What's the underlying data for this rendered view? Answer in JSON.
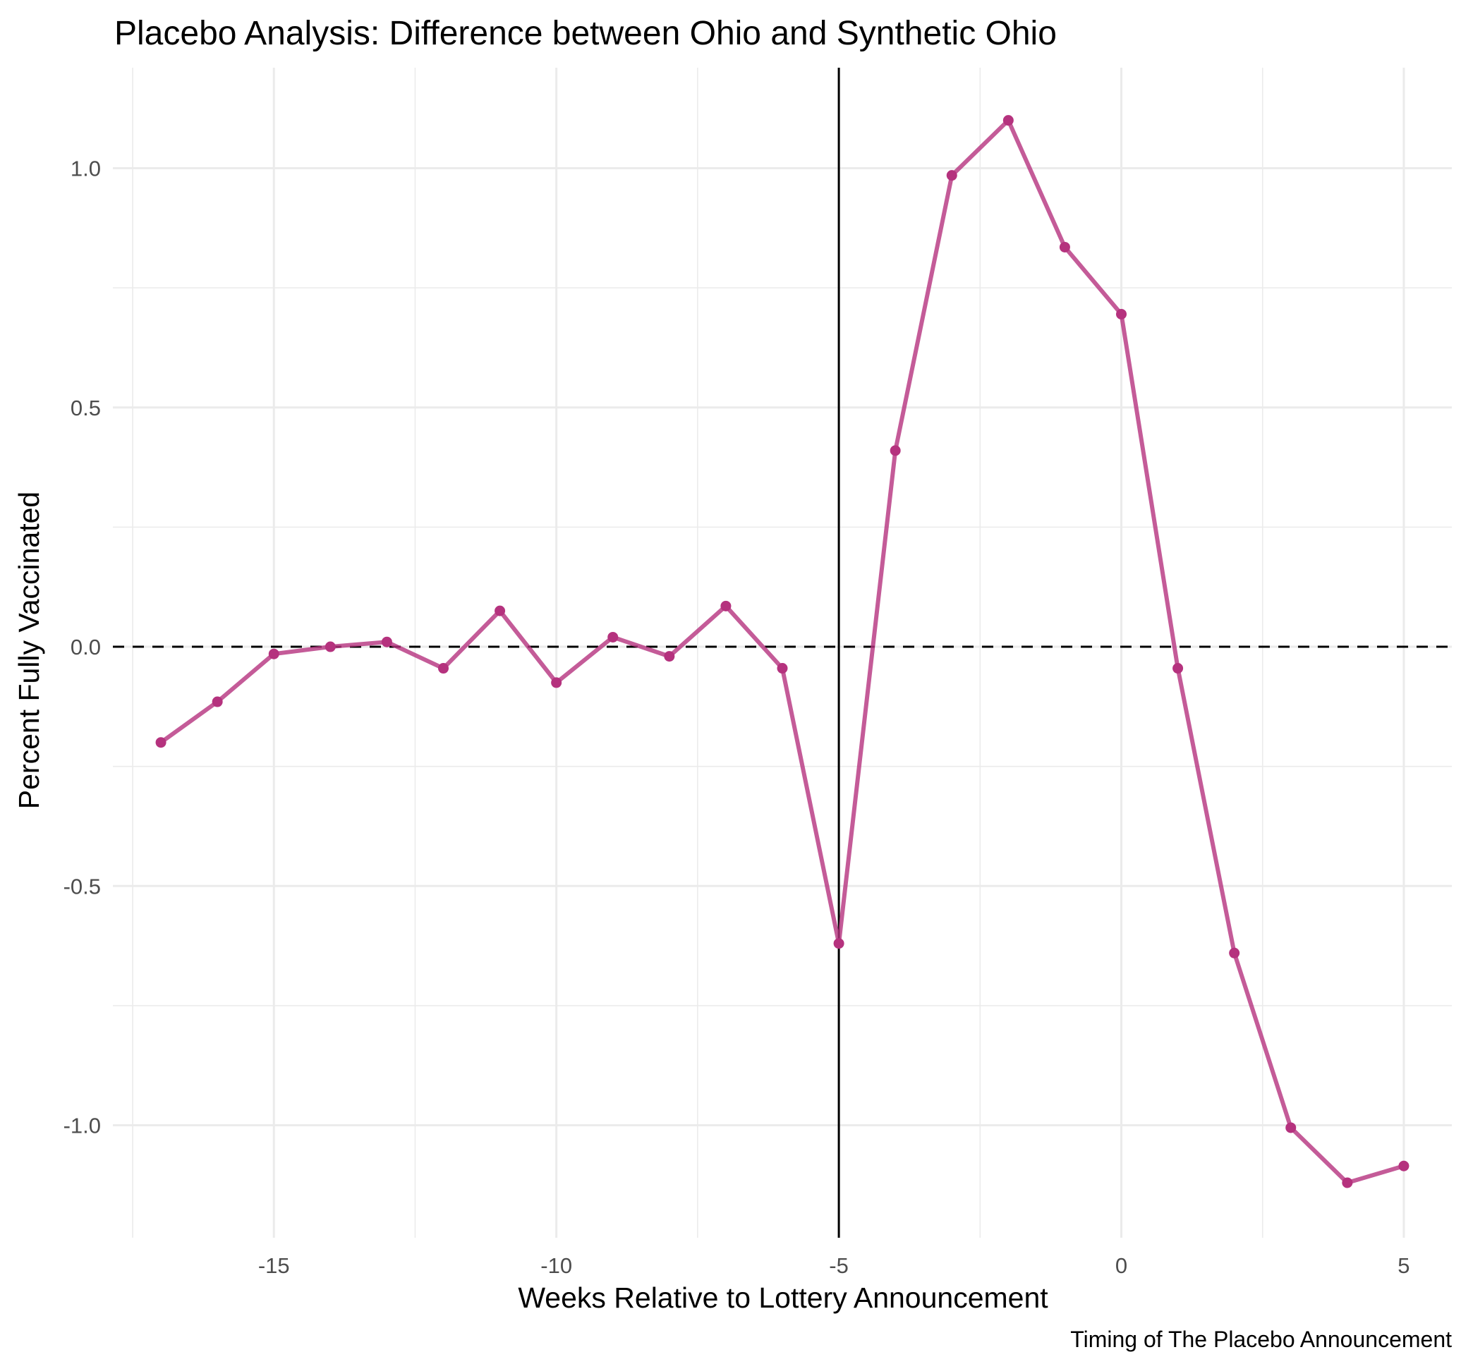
{
  "chart_data": {
    "type": "line",
    "title": "Placebo Analysis:  Difference between Ohio and Synthetic Ohio",
    "xlabel": "Weeks Relative to Lottery Announcement",
    "ylabel": "Percent Fully Vaccinated",
    "caption": "Timing of The Placebo Announcement",
    "x_ticks": [
      -15,
      -10,
      -5,
      0,
      5
    ],
    "x_tick_labels": [
      "-15",
      "-10",
      "-5",
      "0",
      "5"
    ],
    "y_ticks": [
      -1.0,
      -0.5,
      0.0,
      0.5,
      1.0
    ],
    "y_tick_labels": [
      "-1.0",
      "-0.5",
      "0.0",
      "0.5",
      "1.0"
    ],
    "xlim": [
      -17.85,
      5.85
    ],
    "ylim": [
      -1.235,
      1.21
    ],
    "grid": true,
    "reference_lines": {
      "horizontal_dashed_y": 0.0,
      "vertical_solid_x": -5
    },
    "series": [
      {
        "color": "#b5327e",
        "x": [
          -17,
          -16,
          -15,
          -14,
          -13,
          -12,
          -11,
          -10,
          -9,
          -8,
          -7,
          -6,
          -5,
          -4,
          -3,
          -2,
          -1,
          0,
          1,
          2,
          3,
          4,
          5
        ],
        "y": [
          -0.2,
          -0.115,
          -0.015,
          0.0,
          0.01,
          -0.045,
          0.075,
          -0.075,
          0.02,
          -0.02,
          0.085,
          -0.045,
          -0.62,
          0.41,
          0.985,
          1.1,
          0.835,
          0.695,
          -0.045,
          -0.64,
          -1.005,
          -1.12,
          -1.085
        ]
      }
    ]
  }
}
